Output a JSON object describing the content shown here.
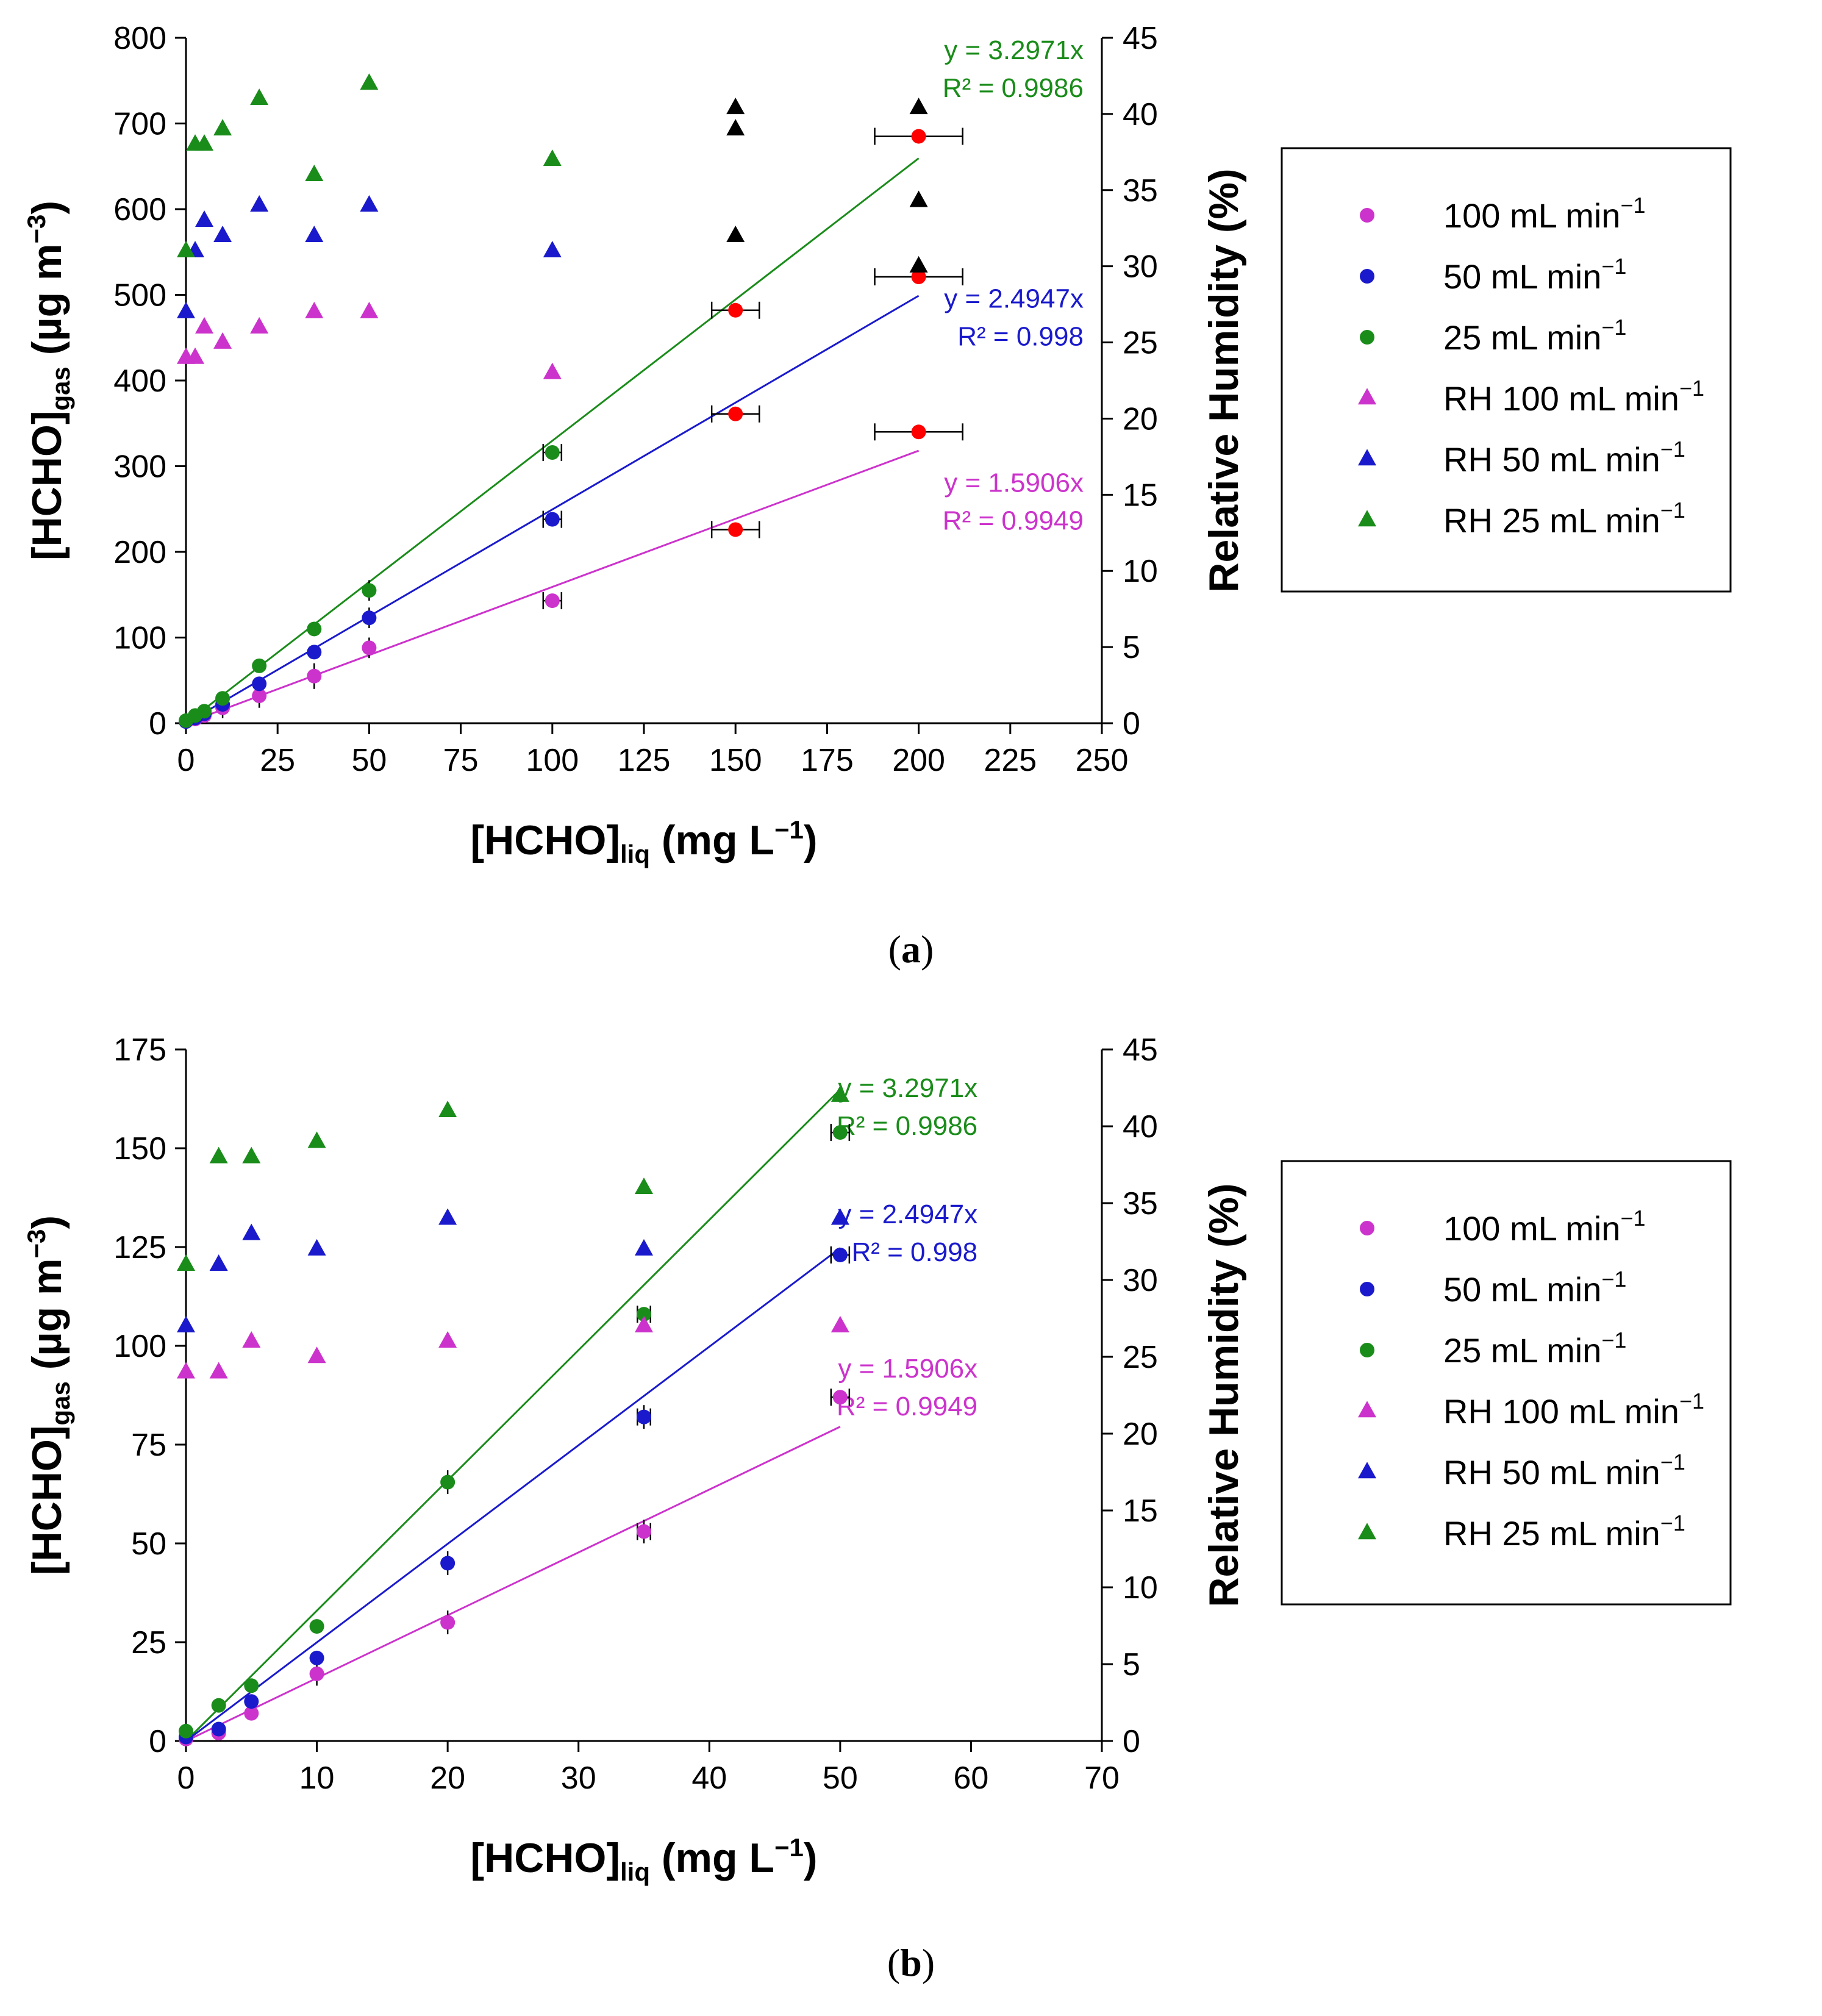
{
  "chart_data": [
    {
      "type": "scatter",
      "caption": "(a)",
      "caption_letter": "a",
      "xlabel": "[HCHO]liq (mg L−1)",
      "xlabel_parts": {
        "main": "[HCHO]",
        "sub": "liq",
        "rest": " (mg L",
        "sup": "−1",
        "end": ")"
      },
      "ylabel": "[HCHO]gas (µg m−3)",
      "ylabel_parts": {
        "main": "[HCHO]",
        "sub": "gas",
        "rest": " (µg m",
        "sup": "−3",
        "end": ")"
      },
      "y2label": "Relative Humidity (%)",
      "xlim": [
        0,
        250
      ],
      "ylim": [
        0,
        800
      ],
      "y2lim": [
        0,
        45
      ],
      "xticks": [
        "0",
        "25",
        "50",
        "75",
        "100",
        "125",
        "150",
        "175",
        "200",
        "225",
        "250"
      ],
      "yticks": [
        "0",
        "100",
        "200",
        "300",
        "400",
        "500",
        "600",
        "700",
        "800"
      ],
      "y2ticks": [
        "0",
        "5",
        "10",
        "15",
        "20",
        "25",
        "30",
        "35",
        "40",
        "45"
      ],
      "series": [
        {
          "name": "100 mL min−1",
          "marker": "circle",
          "color": "#cc33cc",
          "x": [
            0,
            2.5,
            5,
            10,
            20,
            35,
            50,
            100,
            150,
            200
          ],
          "y": [
            2,
            5,
            9,
            18,
            32,
            55,
            88,
            143,
            226,
            340
          ],
          "point_colors": [
            "#cc33cc",
            "#cc33cc",
            "#cc33cc",
            "#cc33cc",
            "#cc33cc",
            "#cc33cc",
            "#cc33cc",
            "#cc33cc",
            "#ff0000",
            "#ff0000"
          ]
        },
        {
          "name": "50 mL min−1",
          "marker": "circle",
          "color": "#1a1acc",
          "x": [
            0,
            2.5,
            5,
            10,
            20,
            35,
            50,
            100,
            150,
            200
          ],
          "y": [
            2,
            6,
            11,
            22,
            46,
            83,
            123,
            238,
            361,
            521
          ],
          "point_colors": [
            "#1a1acc",
            "#1a1acc",
            "#1a1acc",
            "#1a1acc",
            "#1a1acc",
            "#1a1acc",
            "#1a1acc",
            "#1a1acc",
            "#ff0000",
            "#ff0000"
          ]
        },
        {
          "name": "25 mL min−1",
          "marker": "circle",
          "color": "#1a8c1a",
          "x": [
            0,
            2.5,
            5,
            10,
            20,
            35,
            50,
            100,
            150,
            200
          ],
          "y": [
            3,
            9,
            14,
            29,
            67,
            110,
            155,
            316,
            482,
            685
          ],
          "point_colors": [
            "#1a8c1a",
            "#1a8c1a",
            "#1a8c1a",
            "#1a8c1a",
            "#1a8c1a",
            "#1a8c1a",
            "#1a8c1a",
            "#1a8c1a",
            "#ff0000",
            "#ff0000"
          ]
        },
        {
          "name": "RH 100 mL min−1",
          "marker": "triangle",
          "axis": "y2",
          "color": "#cc33cc",
          "x": [
            0,
            2.5,
            5,
            10,
            20,
            35,
            50,
            100,
            150,
            200
          ],
          "y": [
            24,
            24,
            26,
            25,
            26,
            27,
            27,
            23,
            32,
            30
          ],
          "point_colors": [
            "#cc33cc",
            "#cc33cc",
            "#cc33cc",
            "#cc33cc",
            "#cc33cc",
            "#cc33cc",
            "#cc33cc",
            "#cc33cc",
            "#000000",
            "#000000"
          ]
        },
        {
          "name": "RH 50 mL min−1",
          "marker": "triangle",
          "axis": "y2",
          "color": "#1a1acc",
          "x": [
            0,
            2.5,
            5,
            10,
            20,
            35,
            50,
            100,
            150,
            200
          ],
          "y": [
            27,
            31,
            33,
            32,
            34,
            32,
            34,
            31,
            39,
            34.3
          ],
          "point_colors": [
            "#1a1acc",
            "#1a1acc",
            "#1a1acc",
            "#1a1acc",
            "#1a1acc",
            "#1a1acc",
            "#1a1acc",
            "#1a1acc",
            "#000000",
            "#000000"
          ]
        },
        {
          "name": "RH 25 mL min−1",
          "marker": "triangle",
          "axis": "y2",
          "color": "#1a8c1a",
          "x": [
            0,
            2.5,
            5,
            10,
            20,
            35,
            50,
            100,
            150,
            200
          ],
          "y": [
            31,
            38,
            38,
            39,
            41,
            36,
            42,
            37,
            40.4,
            40.4
          ],
          "point_colors": [
            "#1a8c1a",
            "#1a8c1a",
            "#1a8c1a",
            "#1a8c1a",
            "#1a8c1a",
            "#1a8c1a",
            "#1a8c1a",
            "#1a8c1a",
            "#000000",
            "#000000"
          ]
        }
      ],
      "fits": [
        {
          "slope": 3.2971,
          "color": "#1a8c1a",
          "x_end": 200,
          "equation": "y = 3.2971x",
          "r2": "R² = 0.9986",
          "label_x": 245,
          "label_y": 775
        },
        {
          "slope": 2.4947,
          "color": "#1a1acc",
          "x_end": 200,
          "equation": "y = 2.4947x",
          "r2": "R² = 0.998",
          "label_x": 245,
          "label_y": 485
        },
        {
          "slope": 1.5906,
          "color": "#cc33cc",
          "x_end": 200,
          "equation": "y = 1.5906x",
          "r2": "R² = 0.9949",
          "label_x": 245,
          "label_y": 270
        }
      ],
      "xerr": [
        {
          "x": 100,
          "y": 316,
          "err": 2.5
        },
        {
          "x": 100,
          "y": 238,
          "err": 2.5
        },
        {
          "x": 100,
          "y": 143,
          "err": 2.5
        },
        {
          "x": 150,
          "y": 482,
          "err": 6.5
        },
        {
          "x": 150,
          "y": 361,
          "err": 6.5
        },
        {
          "x": 150,
          "y": 226,
          "err": 6.5
        },
        {
          "x": 200,
          "y": 685,
          "err": 12
        },
        {
          "x": 200,
          "y": 521,
          "err": 12
        },
        {
          "x": 200,
          "y": 340,
          "err": 12
        }
      ],
      "yerr": [
        {
          "x": 2.5,
          "y": 5,
          "err": 8
        },
        {
          "x": 10,
          "y": 18,
          "err": 12
        },
        {
          "x": 20,
          "y": 32,
          "err": 14
        },
        {
          "x": 35,
          "y": 55,
          "err": 15
        },
        {
          "x": 50,
          "y": 88,
          "err": 12
        },
        {
          "x": 50,
          "y": 123,
          "err": 12
        },
        {
          "x": 50,
          "y": 155,
          "err": 12
        }
      ]
    },
    {
      "type": "scatter",
      "caption": "(b)",
      "caption_letter": "b",
      "xlabel": "[HCHO]liq (mg L−1)",
      "xlabel_parts": {
        "main": "[HCHO]",
        "sub": "liq",
        "rest": " (mg L",
        "sup": "−1",
        "end": ")"
      },
      "ylabel": "[HCHO]gas (µg m−3)",
      "ylabel_parts": {
        "main": "[HCHO]",
        "sub": "gas",
        "rest": " (µg m",
        "sup": "−3",
        "end": ")"
      },
      "y2label": "Relative Humidity (%)",
      "xlim": [
        0,
        70
      ],
      "ylim": [
        0,
        175
      ],
      "y2lim": [
        0,
        45
      ],
      "xticks": [
        "0",
        "10",
        "20",
        "30",
        "40",
        "50",
        "60",
        "70"
      ],
      "yticks": [
        "0",
        "25",
        "50",
        "75",
        "100",
        "125",
        "150",
        "175"
      ],
      "y2ticks": [
        "0",
        "5",
        "10",
        "15",
        "20",
        "25",
        "30",
        "35",
        "40",
        "45"
      ],
      "series": [
        {
          "name": "100 mL min−1",
          "marker": "circle",
          "color": "#cc33cc",
          "x": [
            0,
            2.5,
            5,
            10,
            20,
            35,
            50
          ],
          "y": [
            0.5,
            2,
            7,
            17,
            30,
            53,
            87
          ]
        },
        {
          "name": "50 mL min−1",
          "marker": "circle",
          "color": "#1a1acc",
          "x": [
            0,
            2.5,
            5,
            10,
            20,
            35,
            50
          ],
          "y": [
            1,
            3,
            10,
            21,
            45,
            82,
            123
          ]
        },
        {
          "name": "25 mL min−1",
          "marker": "circle",
          "color": "#1a8c1a",
          "x": [
            0,
            2.5,
            5,
            10,
            20,
            35,
            50
          ],
          "y": [
            2.5,
            9,
            14,
            29,
            65.5,
            108,
            154
          ]
        },
        {
          "name": "RH 100 mL min−1",
          "marker": "triangle",
          "axis": "y2",
          "color": "#cc33cc",
          "x": [
            0,
            2.5,
            5,
            10,
            20,
            35,
            50
          ],
          "y": [
            24,
            24,
            26,
            25,
            26,
            27,
            27
          ]
        },
        {
          "name": "RH 50 mL min−1",
          "marker": "triangle",
          "axis": "y2",
          "color": "#1a1acc",
          "x": [
            0,
            2.5,
            5,
            10,
            20,
            35,
            50
          ],
          "y": [
            27,
            31,
            33,
            32,
            34,
            32,
            34
          ]
        },
        {
          "name": "RH 25 mL min−1",
          "marker": "triangle",
          "axis": "y2",
          "color": "#1a8c1a",
          "x": [
            0,
            2.5,
            5,
            10,
            20,
            35,
            50
          ],
          "y": [
            31,
            38,
            38,
            39,
            41,
            36,
            42
          ]
        }
      ],
      "fits": [
        {
          "slope": 3.2971,
          "color": "#1a8c1a",
          "x_end": 50,
          "equation": "y = 3.2971x",
          "r2": "R² = 0.9986",
          "label_x": 60.5,
          "label_y": 163
        },
        {
          "slope": 2.4947,
          "color": "#1a1acc",
          "x_end": 50,
          "equation": "y = 2.4947x",
          "r2": "R² = 0.998",
          "label_x": 60.5,
          "label_y": 131
        },
        {
          "slope": 1.5906,
          "color": "#cc33cc",
          "x_end": 50,
          "equation": "y = 1.5906x",
          "r2": "R² = 0.9949",
          "label_x": 60.5,
          "label_y": 92
        }
      ],
      "xerr": [
        {
          "x": 50,
          "y": 154,
          "err": 0.7
        },
        {
          "x": 50,
          "y": 123,
          "err": 0.7
        },
        {
          "x": 50,
          "y": 87,
          "err": 0.7
        },
        {
          "x": 35,
          "y": 108,
          "err": 0.5
        },
        {
          "x": 35,
          "y": 82,
          "err": 0.5
        },
        {
          "x": 35,
          "y": 53,
          "err": 0.5
        }
      ],
      "yerr": [
        {
          "x": 20,
          "y": 65.5,
          "err": 3
        },
        {
          "x": 20,
          "y": 45,
          "err": 3
        },
        {
          "x": 20,
          "y": 30,
          "err": 3
        },
        {
          "x": 10,
          "y": 17,
          "err": 3
        },
        {
          "x": 35,
          "y": 53,
          "err": 3
        },
        {
          "x": 35,
          "y": 82,
          "err": 3
        }
      ]
    }
  ],
  "legend": {
    "items": [
      {
        "label": "100 mL min",
        "sup": "−1",
        "marker": "circle",
        "color": "#cc33cc"
      },
      {
        "label": "50 mL min",
        "sup": "−1",
        "marker": "circle",
        "color": "#1a1acc"
      },
      {
        "label": "25 mL min",
        "sup": "−1",
        "marker": "circle",
        "color": "#1a8c1a"
      },
      {
        "label": "RH 100 mL min",
        "sup": "−1",
        "marker": "triangle",
        "color": "#cc33cc"
      },
      {
        "label": "RH 50 mL min",
        "sup": "−1",
        "marker": "triangle",
        "color": "#1a1acc"
      },
      {
        "label": "RH 25 mL min",
        "sup": "−1",
        "marker": "triangle",
        "color": "#1a8c1a"
      }
    ]
  }
}
